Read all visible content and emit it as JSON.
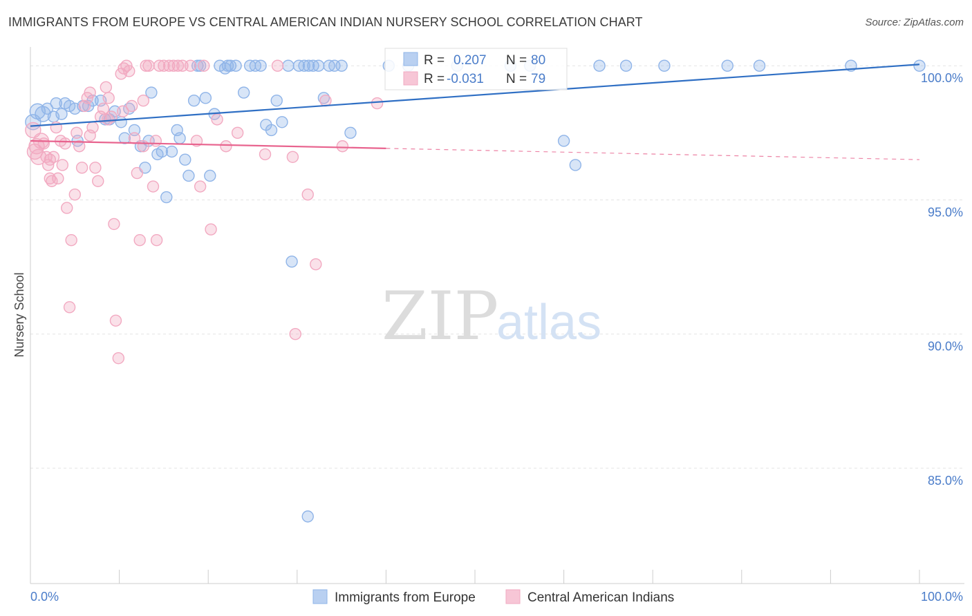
{
  "title": "IMMIGRANTS FROM EUROPE VS CENTRAL AMERICAN INDIAN NURSERY SCHOOL CORRELATION CHART",
  "source": "Source: ZipAtlas.com",
  "watermark": {
    "zip": "ZIP",
    "atlas": "atlas"
  },
  "legend_top": {
    "r_label": "R =",
    "n_label": "N =",
    "rows": [
      {
        "r": "0.207",
        "n": "80"
      },
      {
        "r": "-0.031",
        "n": "79"
      }
    ]
  },
  "chart_data": {
    "type": "scatter",
    "ylabel": "Nursery School",
    "xlabel": "",
    "xlim": [
      0,
      100
    ],
    "ylim": [
      80.7,
      100.7
    ],
    "x_tick_labels": [
      "0.0%",
      "100.0%"
    ],
    "y_ticks": [
      {
        "value": 100,
        "label": "100.0%"
      },
      {
        "value": 95,
        "label": "95.0%"
      },
      {
        "value": 90,
        "label": "90.0%"
      },
      {
        "value": 85,
        "label": "85.0%"
      }
    ],
    "grid": true,
    "series": [
      {
        "name": "Immigrants from Europe",
        "color": "#8fb4e8",
        "trend_color": "#2f6fc4",
        "trend": {
          "x0": 0,
          "y0": 97.75,
          "x1": 100,
          "y1": 100.05,
          "solid_to": 100
        },
        "points": [
          [
            0.3,
            97.9
          ],
          [
            0.8,
            98.3
          ],
          [
            1.4,
            98.2
          ],
          [
            1.9,
            98.4
          ],
          [
            2.6,
            98.1
          ],
          [
            2.9,
            98.6
          ],
          [
            3.5,
            98.2
          ],
          [
            3.9,
            98.6
          ],
          [
            4.4,
            98.5
          ],
          [
            5.0,
            98.4
          ],
          [
            5.3,
            97.2
          ],
          [
            5.9,
            98.5
          ],
          [
            6.5,
            98.5
          ],
          [
            7.0,
            98.7
          ],
          [
            7.9,
            98.7
          ],
          [
            8.4,
            98.0
          ],
          [
            8.9,
            98.0
          ],
          [
            9.5,
            98.3
          ],
          [
            10.2,
            97.9
          ],
          [
            10.6,
            97.3
          ],
          [
            11.1,
            98.4
          ],
          [
            11.7,
            97.6
          ],
          [
            12.4,
            97.0
          ],
          [
            12.9,
            96.2
          ],
          [
            13.3,
            97.2
          ],
          [
            13.6,
            99.0
          ],
          [
            14.3,
            96.7
          ],
          [
            14.8,
            96.8
          ],
          [
            15.3,
            95.1
          ],
          [
            15.9,
            96.8
          ],
          [
            16.5,
            97.6
          ],
          [
            16.8,
            97.3
          ],
          [
            17.4,
            96.5
          ],
          [
            17.8,
            95.9
          ],
          [
            18.4,
            98.7
          ],
          [
            18.8,
            100.0
          ],
          [
            19.1,
            100.0
          ],
          [
            19.7,
            98.8
          ],
          [
            20.2,
            95.9
          ],
          [
            20.7,
            98.2
          ],
          [
            21.3,
            100.0
          ],
          [
            21.9,
            99.9
          ],
          [
            22.2,
            100.0
          ],
          [
            22.5,
            100.0
          ],
          [
            23.1,
            100.0
          ],
          [
            24.0,
            99.0
          ],
          [
            24.7,
            100.0
          ],
          [
            25.3,
            100.0
          ],
          [
            25.9,
            100.0
          ],
          [
            26.5,
            97.8
          ],
          [
            27.1,
            97.6
          ],
          [
            27.7,
            98.7
          ],
          [
            28.3,
            97.9
          ],
          [
            29.0,
            100.0
          ],
          [
            29.4,
            92.7
          ],
          [
            30.2,
            100.0
          ],
          [
            30.8,
            100.0
          ],
          [
            31.3,
            100.0
          ],
          [
            31.8,
            100.0
          ],
          [
            32.4,
            100.0
          ],
          [
            33.0,
            98.8
          ],
          [
            33.6,
            100.0
          ],
          [
            34.2,
            100.0
          ],
          [
            35.0,
            100.0
          ],
          [
            36.0,
            97.5
          ],
          [
            31.2,
            83.2
          ],
          [
            40.3,
            100.0
          ],
          [
            42.5,
            100.0
          ],
          [
            48.0,
            100.0
          ],
          [
            54.0,
            100.0
          ],
          [
            56.2,
            100.0
          ],
          [
            64.0,
            100.0
          ],
          [
            67.0,
            100.0
          ],
          [
            71.3,
            100.0
          ],
          [
            78.4,
            100.0
          ],
          [
            82.0,
            100.0
          ],
          [
            92.3,
            100.0
          ],
          [
            100.0,
            100.0
          ],
          [
            60.0,
            97.2
          ],
          [
            61.3,
            96.3
          ]
        ]
      },
      {
        "name": "Central American Indians",
        "color": "#f2a9c1",
        "trend_color": "#e8638e",
        "trend": {
          "x0": 0,
          "y0": 97.2,
          "x1": 100,
          "y1": 96.5,
          "solid_to": 40
        },
        "points": [
          [
            0.3,
            97.6
          ],
          [
            0.5,
            96.8
          ],
          [
            0.7,
            97.0
          ],
          [
            0.9,
            96.6
          ],
          [
            1.2,
            97.2
          ],
          [
            1.5,
            97.1
          ],
          [
            1.8,
            96.6
          ],
          [
            2.0,
            96.3
          ],
          [
            2.2,
            96.5
          ],
          [
            2.4,
            95.7
          ],
          [
            2.6,
            96.6
          ],
          [
            2.9,
            97.7
          ],
          [
            3.1,
            95.8
          ],
          [
            3.4,
            97.2
          ],
          [
            3.6,
            96.3
          ],
          [
            3.9,
            97.1
          ],
          [
            4.1,
            94.7
          ],
          [
            4.4,
            91.0
          ],
          [
            4.6,
            93.5
          ],
          [
            5.0,
            95.2
          ],
          [
            5.2,
            97.5
          ],
          [
            5.5,
            97.0
          ],
          [
            5.8,
            96.2
          ],
          [
            6.1,
            98.5
          ],
          [
            6.4,
            98.8
          ],
          [
            6.7,
            99.0
          ],
          [
            7.0,
            97.7
          ],
          [
            7.3,
            96.2
          ],
          [
            7.6,
            95.7
          ],
          [
            7.9,
            98.1
          ],
          [
            8.2,
            98.4
          ],
          [
            8.5,
            99.2
          ],
          [
            8.8,
            98.8
          ],
          [
            9.1,
            98.1
          ],
          [
            9.4,
            94.1
          ],
          [
            9.6,
            90.5
          ],
          [
            9.9,
            89.1
          ],
          [
            10.2,
            99.7
          ],
          [
            10.5,
            99.9
          ],
          [
            10.8,
            100.0
          ],
          [
            11.1,
            99.8
          ],
          [
            11.4,
            98.5
          ],
          [
            11.7,
            97.3
          ],
          [
            12.0,
            96.0
          ],
          [
            12.3,
            93.5
          ],
          [
            12.7,
            98.7
          ],
          [
            13.0,
            100.0
          ],
          [
            13.3,
            100.0
          ],
          [
            13.8,
            95.5
          ],
          [
            14.1,
            97.2
          ],
          [
            14.5,
            100.0
          ],
          [
            15.0,
            100.0
          ],
          [
            15.6,
            100.0
          ],
          [
            16.1,
            100.0
          ],
          [
            16.6,
            100.0
          ],
          [
            17.1,
            100.0
          ],
          [
            18.0,
            100.0
          ],
          [
            18.7,
            97.2
          ],
          [
            19.1,
            95.5
          ],
          [
            19.5,
            100.0
          ],
          [
            20.3,
            93.9
          ],
          [
            21.0,
            98.0
          ],
          [
            22.0,
            97.0
          ],
          [
            23.3,
            97.5
          ],
          [
            26.4,
            96.7
          ],
          [
            27.8,
            100.0
          ],
          [
            29.5,
            96.6
          ],
          [
            29.8,
            90.0
          ],
          [
            31.2,
            95.2
          ],
          [
            32.1,
            92.6
          ],
          [
            33.2,
            98.7
          ],
          [
            35.1,
            97.0
          ],
          [
            39.0,
            98.6
          ],
          [
            2.2,
            95.8
          ],
          [
            6.7,
            97.4
          ],
          [
            8.7,
            98.0
          ],
          [
            10.4,
            98.3
          ],
          [
            12.7,
            97.0
          ],
          [
            14.2,
            93.5
          ]
        ]
      }
    ]
  }
}
